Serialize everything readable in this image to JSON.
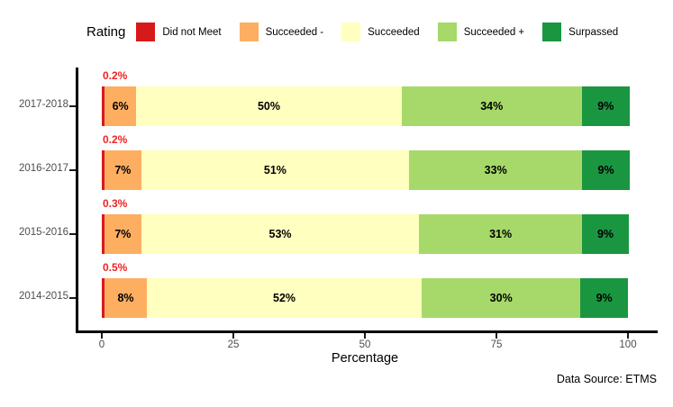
{
  "legend": {
    "title": "Rating",
    "items": [
      {
        "label": "Did not Meet",
        "color": "#D7191C"
      },
      {
        "label": "Succeeded -",
        "color": "#FDAE61"
      },
      {
        "label": "Succeeded",
        "color": "#FFFFBF"
      },
      {
        "label": "Succeeded +",
        "color": "#A6D96A"
      },
      {
        "label": "Surpassed",
        "color": "#1A9641"
      }
    ]
  },
  "chart_data": {
    "type": "bar",
    "orientation": "horizontal",
    "stacked": true,
    "categories": [
      "2017-2018",
      "2016-2017",
      "2015-2016",
      "2014-2015"
    ],
    "series": [
      {
        "name": "Did not Meet",
        "color": "#D7191C",
        "values": [
          0.2,
          0.2,
          0.3,
          0.5
        ],
        "labels": [
          "0.2%",
          "0.2%",
          "0.3%",
          "0.5%"
        ],
        "label_position": "above"
      },
      {
        "name": "Succeeded -",
        "color": "#FDAE61",
        "values": [
          6,
          7,
          7,
          8
        ],
        "labels": [
          "6%",
          "7%",
          "7%",
          "8%"
        ],
        "label_position": "inside"
      },
      {
        "name": "Succeeded",
        "color": "#FFFFBF",
        "values": [
          50,
          51,
          53,
          52
        ],
        "labels": [
          "50%",
          "51%",
          "53%",
          "52%"
        ],
        "label_position": "inside"
      },
      {
        "name": "Succeeded +",
        "color": "#A6D96A",
        "values": [
          34,
          33,
          31,
          30
        ],
        "labels": [
          "34%",
          "33%",
          "31%",
          "30%"
        ],
        "label_position": "inside"
      },
      {
        "name": "Surpassed",
        "color": "#1A9641",
        "values": [
          9,
          9,
          9,
          9
        ],
        "labels": [
          "9%",
          "9%",
          "9%",
          "9%"
        ],
        "label_position": "inside"
      }
    ],
    "xlabel": "Percentage",
    "x_ticks": [
      "0",
      "25",
      "50",
      "75",
      "100"
    ],
    "x_tick_values": [
      0,
      25,
      50,
      75,
      100
    ],
    "xlim": [
      0,
      100
    ],
    "grid": "off",
    "legend_position": "top"
  },
  "colors": {
    "annotation_red": "#EE2424",
    "axis_text": "#4D4D4D",
    "axis_line": "#000000",
    "background": "#FFFFFF"
  },
  "footer": {
    "source": "Data Source: ETMS"
  }
}
